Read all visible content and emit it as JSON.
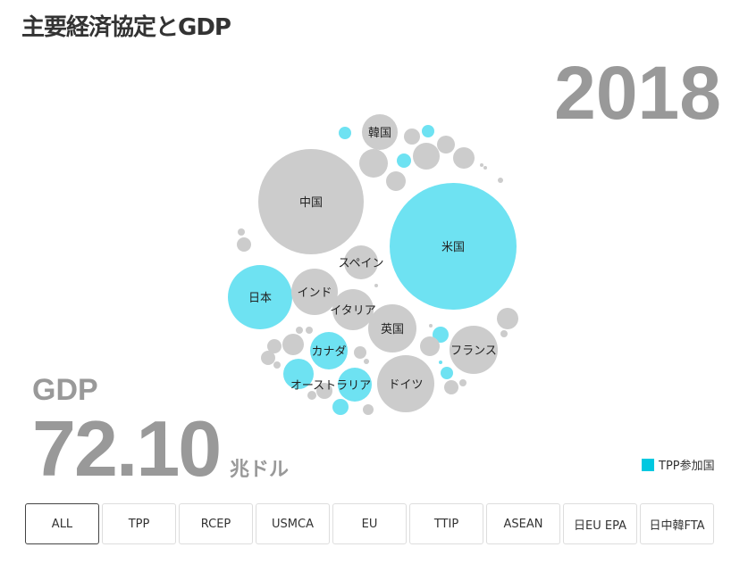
{
  "title": "主要経済協定とGDP",
  "year": "2018",
  "gdp": {
    "label": "GDP",
    "value": "72.10",
    "unit": "兆ドル"
  },
  "legend": {
    "label": "TPP参加国",
    "color": "#00c8e0"
  },
  "buttons": [
    "ALL",
    "TPP",
    "RCEP",
    "USMCA",
    "EU",
    "TTIP",
    "ASEAN",
    "日EU EPA",
    "日中韓FTA"
  ],
  "active_button": "ALL",
  "chart_data": {
    "type": "bubble",
    "colors": {
      "tpp": "#6ee2f2",
      "other": "#cccccc"
    },
    "labeled_countries": [
      {
        "name": "米国",
        "tpp": true
      },
      {
        "name": "中国",
        "tpp": false
      },
      {
        "name": "日本",
        "tpp": true
      },
      {
        "name": "ドイツ",
        "tpp": false
      },
      {
        "name": "英国",
        "tpp": false
      },
      {
        "name": "フランス",
        "tpp": false
      },
      {
        "name": "インド",
        "tpp": false
      },
      {
        "name": "イタリア",
        "tpp": false
      },
      {
        "name": "カナダ",
        "tpp": true
      },
      {
        "name": "韓国",
        "tpp": false
      },
      {
        "name": "スペイン",
        "tpp": false
      },
      {
        "name": "オーストラリア",
        "tpp": true
      }
    ]
  }
}
